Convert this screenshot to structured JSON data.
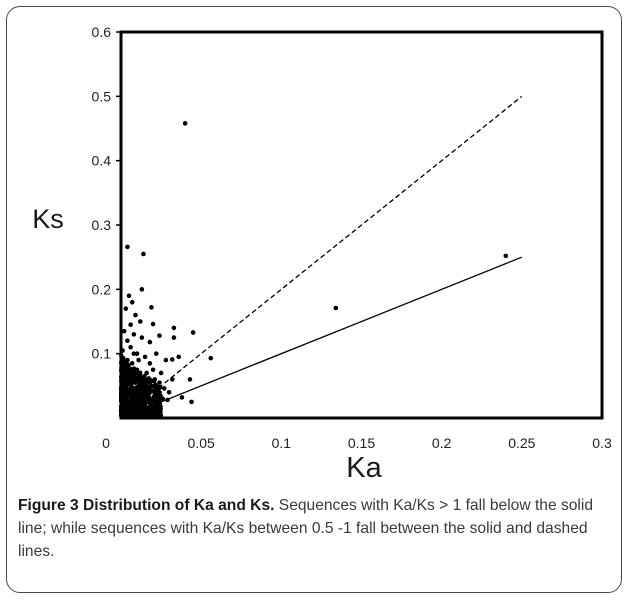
{
  "chart_data": {
    "type": "scatter",
    "title": "",
    "xlabel": "Ka",
    "ylabel": "Ks",
    "xlim": [
      0,
      0.3
    ],
    "ylim": [
      0,
      0.6
    ],
    "x_ticks": [
      0,
      0.05,
      0.1,
      0.15,
      0.2,
      0.25,
      0.3
    ],
    "x_tick_labels": [
      "0",
      "0.05",
      "0.1",
      "0.15",
      "0.2",
      "0.25",
      "0.3"
    ],
    "y_ticks": [
      0.1,
      0.2,
      0.3,
      0.4,
      0.5,
      0.6
    ],
    "y_tick_labels": [
      "0.1",
      "0.2",
      "0.3",
      "0.4",
      "0.5",
      "0.6"
    ],
    "grid": false,
    "reference_lines": [
      {
        "style": "dashed",
        "slope": 2,
        "x": [
          0,
          0.25
        ],
        "y": [
          0,
          0.5
        ]
      },
      {
        "style": "solid",
        "slope": 1,
        "x": [
          0,
          0.25
        ],
        "y": [
          0,
          0.25
        ]
      }
    ],
    "points": [
      [
        0.24,
        0.252
      ],
      [
        0.134,
        0.171
      ],
      [
        0.04,
        0.458
      ],
      [
        0.056,
        0.093
      ],
      [
        0.045,
        0.133
      ],
      [
        0.043,
        0.06
      ],
      [
        0.044,
        0.025
      ],
      [
        0.038,
        0.032
      ],
      [
        0.036,
        0.095
      ],
      [
        0.033,
        0.14
      ],
      [
        0.033,
        0.125
      ],
      [
        0.032,
        0.091
      ],
      [
        0.032,
        0.06
      ],
      [
        0.028,
        0.09
      ],
      [
        0.027,
        0.046
      ],
      [
        0.024,
        0.128
      ],
      [
        0.022,
        0.1
      ],
      [
        0.021,
        0.06
      ],
      [
        0.02,
        0.146
      ],
      [
        0.019,
        0.172
      ],
      [
        0.018,
        0.118
      ],
      [
        0.016,
        0.07
      ],
      [
        0.014,
        0.255
      ],
      [
        0.013,
        0.2
      ],
      [
        0.013,
        0.125
      ],
      [
        0.012,
        0.15
      ],
      [
        0.011,
        0.09
      ],
      [
        0.011,
        0.05
      ],
      [
        0.01,
        0.1
      ],
      [
        0.009,
        0.16
      ],
      [
        0.009,
        0.07
      ],
      [
        0.008,
        0.13
      ],
      [
        0.008,
        0.04
      ],
      [
        0.007,
        0.18
      ],
      [
        0.007,
        0.085
      ],
      [
        0.006,
        0.145
      ],
      [
        0.006,
        0.11
      ],
      [
        0.006,
        0.03
      ],
      [
        0.005,
        0.19
      ],
      [
        0.005,
        0.06
      ],
      [
        0.004,
        0.266
      ],
      [
        0.004,
        0.12
      ],
      [
        0.004,
        0.09
      ],
      [
        0.003,
        0.17
      ],
      [
        0.003,
        0.05
      ],
      [
        0.002,
        0.135
      ],
      [
        0.002,
        0.08
      ],
      [
        0.002,
        0.02
      ],
      [
        0.001,
        0.105
      ],
      [
        0.001,
        0.04
      ],
      [
        0.015,
        0.02
      ],
      [
        0.017,
        0.035
      ],
      [
        0.019,
        0.025
      ],
      [
        0.021,
        0.03
      ],
      [
        0.023,
        0.04
      ],
      [
        0.026,
        0.03
      ],
      [
        0.029,
        0.028
      ],
      [
        0.03,
        0.04
      ],
      [
        0.012,
        0.065
      ],
      [
        0.014,
        0.055
      ],
      [
        0.016,
        0.045
      ],
      [
        0.018,
        0.085
      ],
      [
        0.02,
        0.075
      ],
      [
        0.01,
        0.075
      ],
      [
        0.008,
        0.1
      ],
      [
        0.007,
        0.055
      ],
      [
        0.005,
        0.075
      ],
      [
        0.003,
        0.065
      ],
      [
        0.009,
        0.045
      ],
      [
        0.011,
        0.035
      ],
      [
        0.013,
        0.015
      ],
      [
        0.015,
        0.095
      ],
      [
        0.017,
        0.06
      ],
      [
        0.006,
        0.015
      ],
      [
        0.004,
        0.04
      ],
      [
        0.002,
        0.055
      ],
      [
        0.001,
        0.07
      ],
      [
        0.025,
        0.07
      ],
      [
        0.024,
        0.055
      ]
    ],
    "dense_cluster": {
      "x_range": [
        0,
        0.025
      ],
      "y_range": [
        0,
        0.1
      ]
    }
  },
  "caption": {
    "title": "Figure 3 Distribution of Ka and Ks.",
    "text": "Sequences with Ka/Ks > 1 fall below the solid line; while sequences with Ka/Ks between 0.5 -1 fall between the solid and dashed lines."
  }
}
